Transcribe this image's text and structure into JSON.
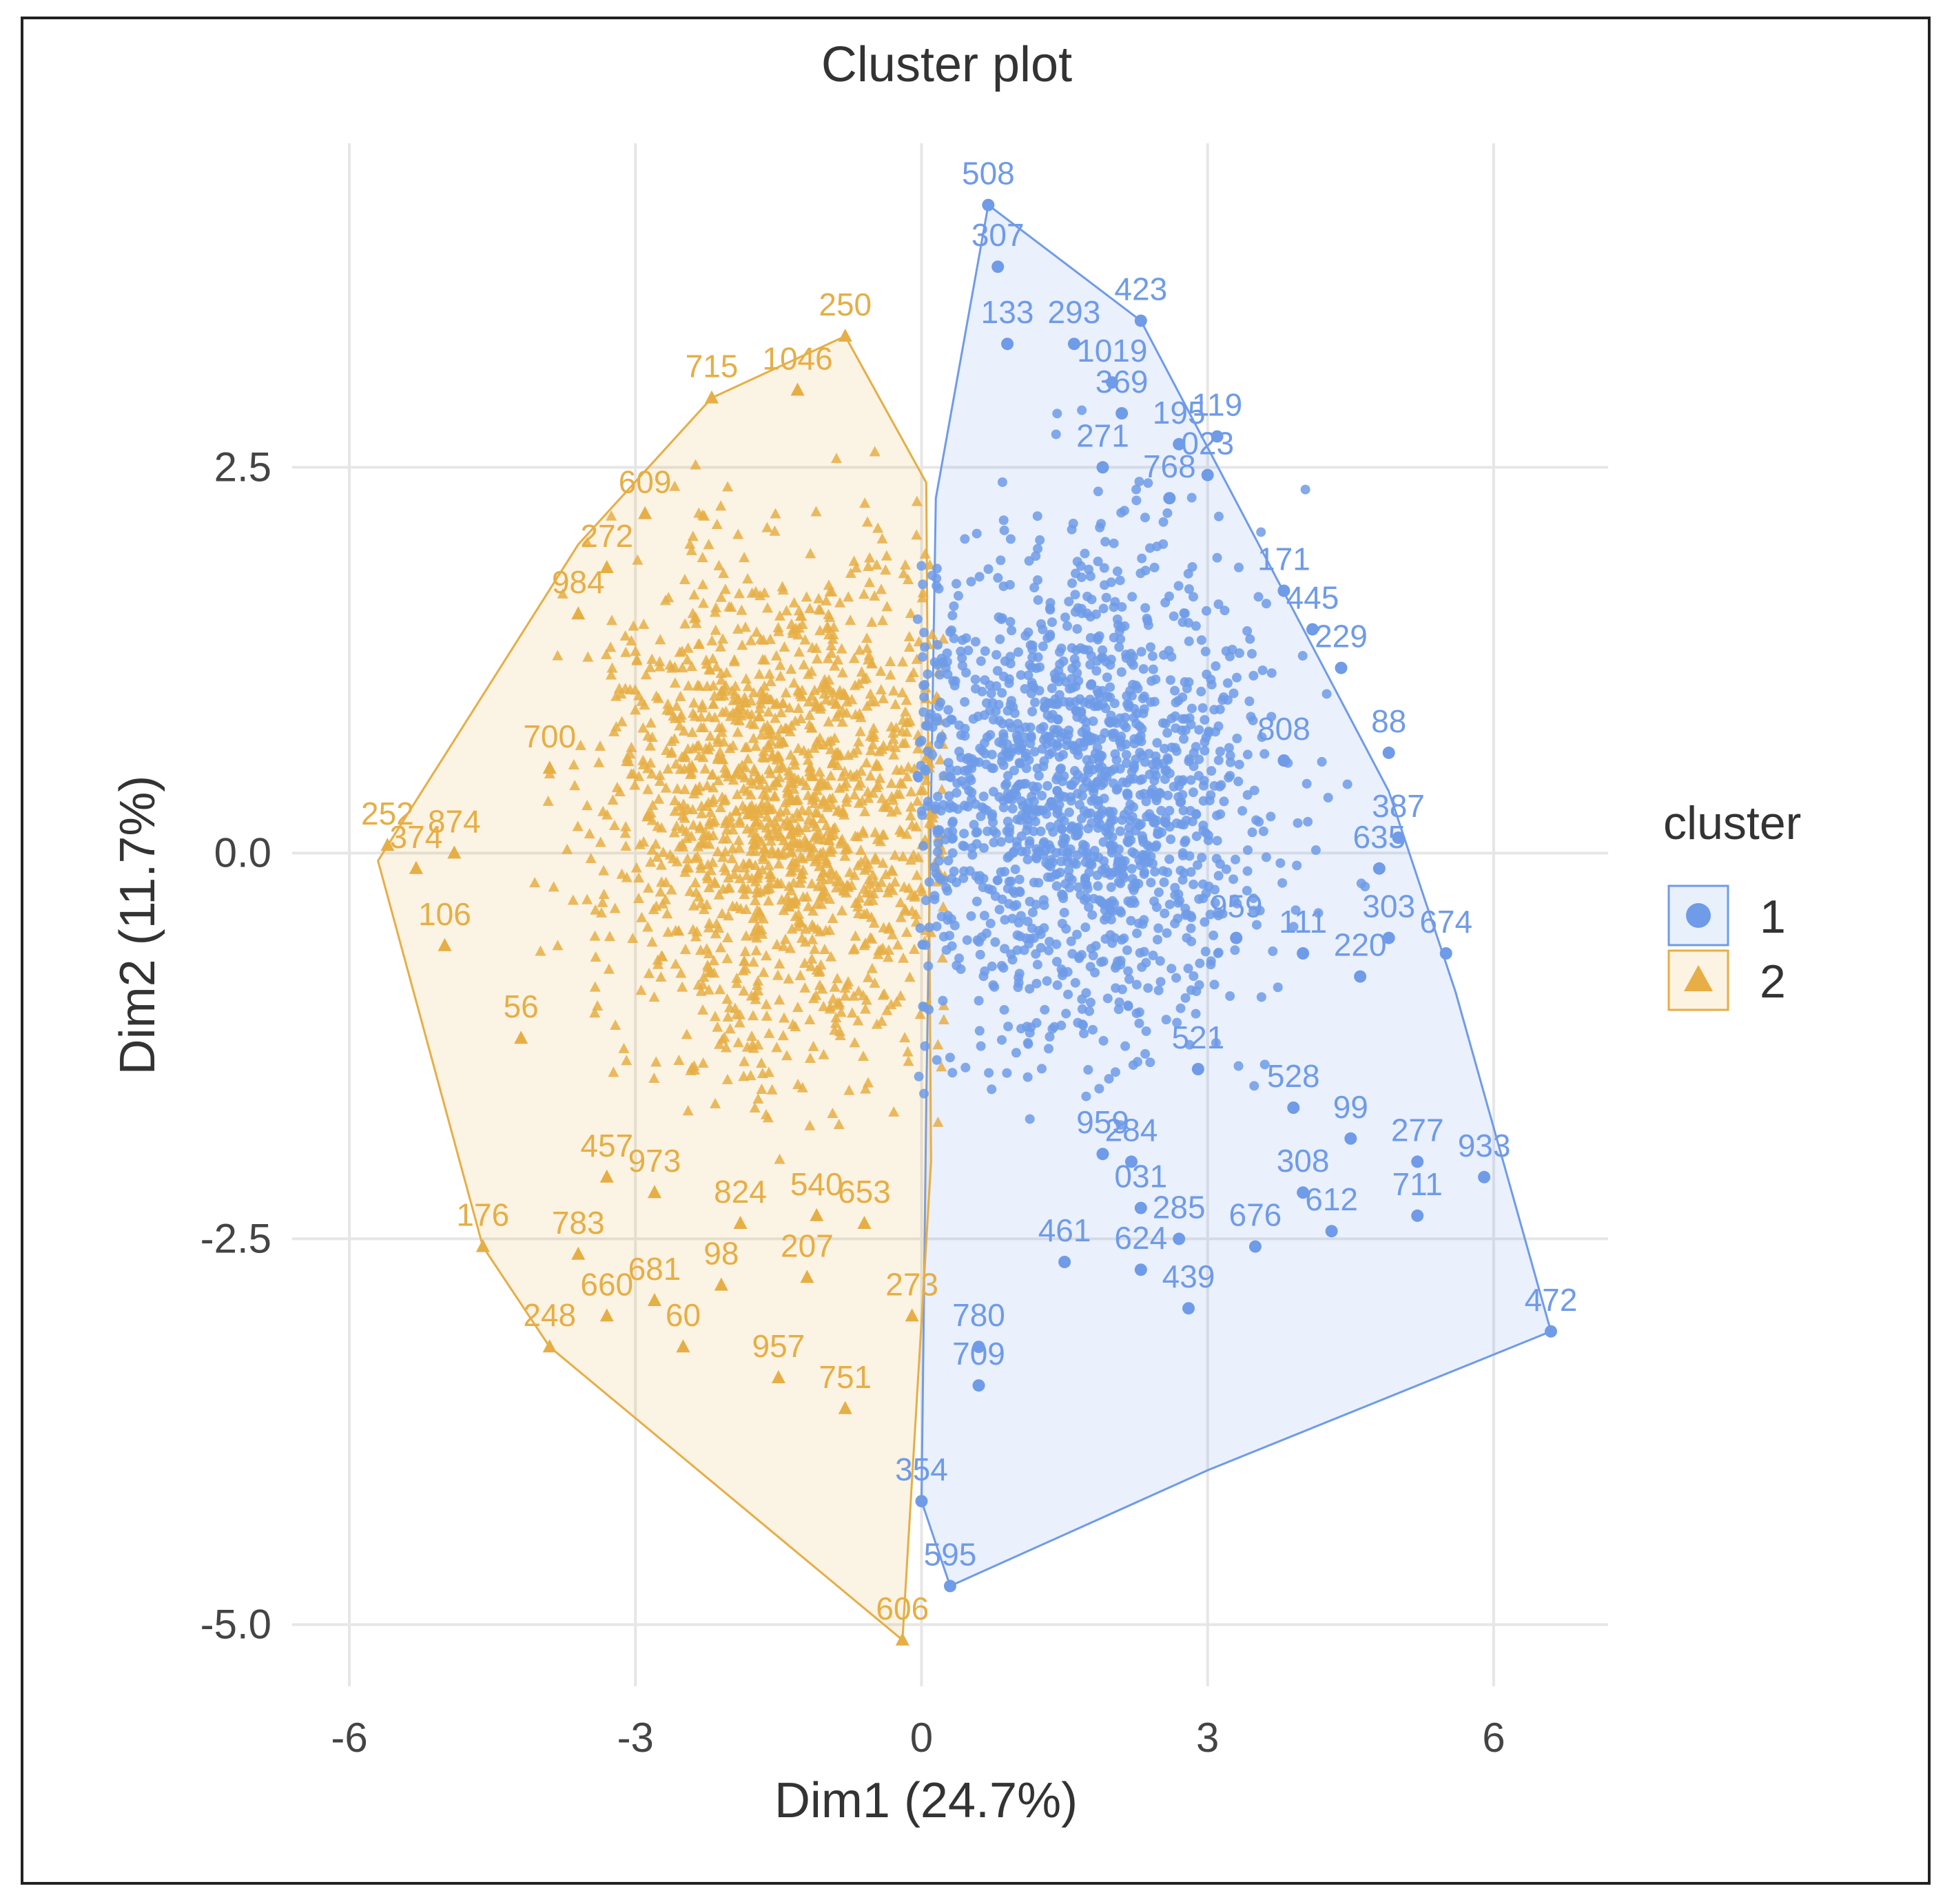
{
  "chart_data": {
    "type": "scatter",
    "title": "Cluster plot",
    "xlabel": "Dim1 (24.7%)",
    "ylabel": "Dim2 (11.7%)",
    "xlim": [
      -6.6,
      7.2
    ],
    "ylim": [
      -5.4,
      4.6
    ],
    "xticks": [
      -6,
      -3,
      0,
      3,
      6
    ],
    "xtick_labels": [
      "-6",
      "-3",
      "0",
      "3",
      "6"
    ],
    "yticks": [
      -5.0,
      -2.5,
      0.0,
      2.5
    ],
    "ytick_labels": [
      "-5.0",
      "-2.5",
      "0.0",
      "2.5"
    ],
    "grid": true,
    "legend": {
      "title": "cluster",
      "position": "right",
      "entries": [
        {
          "label": "1",
          "marker": "circle",
          "color": "#6F9BE8",
          "fill": "#E8F0FC"
        },
        {
          "label": "2",
          "marker": "triangle",
          "color": "#E6AE45",
          "fill": "#FDF3E3"
        }
      ]
    },
    "series": [
      {
        "name": "1",
        "color": "#6F9BE8",
        "hull": [
          [
            0.7,
            4.2
          ],
          [
            2.3,
            3.45
          ],
          [
            4.9,
            0.4
          ],
          [
            5.6,
            -0.9
          ],
          [
            6.6,
            -3.1
          ],
          [
            3.0,
            -4.0
          ],
          [
            0.3,
            -4.75
          ],
          [
            0.0,
            -4.2
          ],
          [
            0.05,
            -1.6
          ],
          [
            0.15,
            2.3
          ]
        ],
        "labeled_points": [
          {
            "id": "508",
            "x": 0.7,
            "y": 4.2
          },
          {
            "id": "307",
            "x": 0.8,
            "y": 3.8
          },
          {
            "id": "423",
            "x": 2.3,
            "y": 3.45
          },
          {
            "id": "133",
            "x": 0.9,
            "y": 3.3
          },
          {
            "id": "293",
            "x": 1.6,
            "y": 3.3
          },
          {
            "id": "1019",
            "x": 2.0,
            "y": 3.05
          },
          {
            "id": "369",
            "x": 2.1,
            "y": 2.85
          },
          {
            "id": "119",
            "x": 3.1,
            "y": 2.7
          },
          {
            "id": "195",
            "x": 2.7,
            "y": 2.65
          },
          {
            "id": "023",
            "x": 3.0,
            "y": 2.45
          },
          {
            "id": "271",
            "x": 1.9,
            "y": 2.5
          },
          {
            "id": "768",
            "x": 2.6,
            "y": 2.3
          },
          {
            "id": "171",
            "x": 3.8,
            "y": 1.7
          },
          {
            "id": "445",
            "x": 4.1,
            "y": 1.45
          },
          {
            "id": "229",
            "x": 4.4,
            "y": 1.2
          },
          {
            "id": "808",
            "x": 3.8,
            "y": 0.6
          },
          {
            "id": "88",
            "x": 4.9,
            "y": 0.65
          },
          {
            "id": "387",
            "x": 5.0,
            "y": 0.1
          },
          {
            "id": "635",
            "x": 4.8,
            "y": -0.1
          },
          {
            "id": "303",
            "x": 4.9,
            "y": -0.55
          },
          {
            "id": "674",
            "x": 5.5,
            "y": -0.65
          },
          {
            "id": "959",
            "x": 3.3,
            "y": -0.55
          },
          {
            "id": "111",
            "x": 4.0,
            "y": -0.65
          },
          {
            "id": "220",
            "x": 4.6,
            "y": -0.8
          },
          {
            "id": "99",
            "x": 4.5,
            "y": -1.85
          },
          {
            "id": "277",
            "x": 5.2,
            "y": -2.0
          },
          {
            "id": "933",
            "x": 5.9,
            "y": -2.1
          },
          {
            "id": "308",
            "x": 4.0,
            "y": -2.2
          },
          {
            "id": "711",
            "x": 5.2,
            "y": -2.35
          },
          {
            "id": "612",
            "x": 4.3,
            "y": -2.45
          },
          {
            "id": "676",
            "x": 3.5,
            "y": -2.55
          },
          {
            "id": "472",
            "x": 6.6,
            "y": -3.1
          },
          {
            "id": "284",
            "x": 2.2,
            "y": -2.0
          },
          {
            "id": "959",
            "x": 1.9,
            "y": -1.95
          },
          {
            "id": "031",
            "x": 2.3,
            "y": -2.3
          },
          {
            "id": "285",
            "x": 2.7,
            "y": -2.5
          },
          {
            "id": "461",
            "x": 1.5,
            "y": -2.65
          },
          {
            "id": "624",
            "x": 2.3,
            "y": -2.7
          },
          {
            "id": "439",
            "x": 2.8,
            "y": -2.95
          },
          {
            "id": "521",
            "x": 2.9,
            "y": -1.4
          },
          {
            "id": "528",
            "x": 3.9,
            "y": -1.65
          },
          {
            "id": "780",
            "x": 0.6,
            "y": -3.2
          },
          {
            "id": "709",
            "x": 0.6,
            "y": -3.45
          },
          {
            "id": "354",
            "x": 0.0,
            "y": -4.2
          },
          {
            "id": "595",
            "x": 0.3,
            "y": -4.75
          }
        ]
      },
      {
        "name": "2",
        "color": "#E6AE45",
        "hull": [
          [
            -0.8,
            3.35
          ],
          [
            -2.2,
            2.95
          ],
          [
            -3.6,
            2.0
          ],
          [
            -5.7,
            -0.05
          ],
          [
            -4.6,
            -2.55
          ],
          [
            -3.9,
            -3.2
          ],
          [
            -0.2,
            -5.1
          ],
          [
            0.1,
            -2.0
          ],
          [
            0.05,
            2.4
          ]
        ],
        "labeled_points": [
          {
            "id": "250",
            "x": -0.8,
            "y": 3.35
          },
          {
            "id": "715",
            "x": -2.2,
            "y": 2.95
          },
          {
            "id": "1046",
            "x": -1.3,
            "y": 3.0
          },
          {
            "id": "609",
            "x": -2.9,
            "y": 2.2
          },
          {
            "id": "272",
            "x": -3.3,
            "y": 1.85
          },
          {
            "id": "984",
            "x": -3.6,
            "y": 1.55
          },
          {
            "id": "700",
            "x": -3.9,
            "y": 0.55
          },
          {
            "id": "252",
            "x": -5.6,
            "y": 0.05
          },
          {
            "id": "374",
            "x": -5.3,
            "y": -0.1
          },
          {
            "id": "874",
            "x": -4.9,
            "y": 0.0
          },
          {
            "id": "106",
            "x": -5.0,
            "y": -0.6
          },
          {
            "id": "56",
            "x": -4.2,
            "y": -1.2
          },
          {
            "id": "176",
            "x": -4.6,
            "y": -2.55
          },
          {
            "id": "783",
            "x": -3.6,
            "y": -2.6
          },
          {
            "id": "248",
            "x": -3.9,
            "y": -3.2
          },
          {
            "id": "457",
            "x": -3.3,
            "y": -2.1
          },
          {
            "id": "973",
            "x": -2.8,
            "y": -2.2
          },
          {
            "id": "824",
            "x": -1.9,
            "y": -2.4
          },
          {
            "id": "540",
            "x": -1.1,
            "y": -2.35
          },
          {
            "id": "653",
            "x": -0.6,
            "y": -2.4
          },
          {
            "id": "98",
            "x": -2.1,
            "y": -2.8
          },
          {
            "id": "207",
            "x": -1.2,
            "y": -2.75
          },
          {
            "id": "681",
            "x": -2.8,
            "y": -2.9
          },
          {
            "id": "660",
            "x": -3.3,
            "y": -3.0
          },
          {
            "id": "60",
            "x": -2.5,
            "y": -3.2
          },
          {
            "id": "957",
            "x": -1.5,
            "y": -3.4
          },
          {
            "id": "751",
            "x": -0.8,
            "y": -3.6
          },
          {
            "id": "273",
            "x": -0.1,
            "y": -3.0
          },
          {
            "id": "606",
            "x": -0.2,
            "y": -5.1
          }
        ]
      }
    ]
  }
}
